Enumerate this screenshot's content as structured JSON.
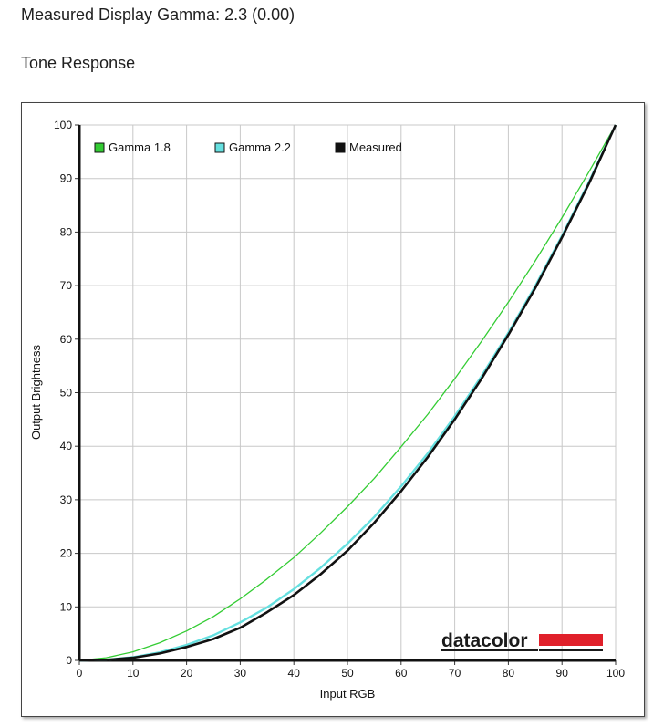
{
  "header": {
    "gamma_label": "Measured Display Gamma: 2.3 (0.00)",
    "section_title": "Tone Response"
  },
  "logo_text": "datacolor",
  "colors": {
    "gamma18": "#33cc33",
    "gamma22": "#66e0e0",
    "measured": "#111111",
    "logo_red": "#e0202a",
    "grid": "#c8c8c8"
  },
  "chart_data": {
    "type": "line",
    "title": "",
    "xlabel": "Input RGB",
    "ylabel": "Output Brightness",
    "xlim": [
      0,
      100
    ],
    "ylim": [
      0,
      100
    ],
    "xticks": [
      "0",
      "10",
      "20",
      "30",
      "40",
      "50",
      "60",
      "70",
      "80",
      "90",
      "100"
    ],
    "yticks": [
      "0",
      "10",
      "20",
      "30",
      "40",
      "50",
      "60",
      "70",
      "80",
      "90",
      "100"
    ],
    "grid": true,
    "legend_position": "top-left",
    "x": [
      0,
      5,
      10,
      15,
      20,
      25,
      30,
      35,
      40,
      45,
      50,
      55,
      60,
      65,
      70,
      75,
      80,
      85,
      90,
      95,
      100
    ],
    "series": [
      {
        "name": "Gamma 1.8",
        "color": "#33cc33",
        "values": [
          0,
          0.5,
          1.6,
          3.3,
          5.5,
          8.2,
          11.5,
          15.2,
          19.2,
          23.8,
          28.7,
          34.0,
          39.9,
          46.0,
          52.6,
          59.6,
          66.9,
          74.6,
          82.7,
          91.2,
          100
        ]
      },
      {
        "name": "Gamma 2.2",
        "color": "#66e0e0",
        "values": [
          0,
          0.1,
          0.6,
          1.5,
          2.9,
          4.7,
          7.1,
          9.9,
          13.3,
          17.3,
          21.8,
          26.8,
          32.5,
          38.7,
          45.6,
          53.1,
          61.2,
          69.9,
          79.3,
          89.3,
          100
        ]
      },
      {
        "name": "Measured",
        "color": "#111111",
        "values": [
          0,
          0.1,
          0.5,
          1.3,
          2.5,
          4.0,
          6.1,
          9.0,
          12.2,
          16.1,
          20.5,
          25.7,
          31.6,
          38.0,
          45.0,
          52.6,
          60.8,
          69.5,
          79.0,
          89.0,
          100
        ]
      }
    ]
  }
}
